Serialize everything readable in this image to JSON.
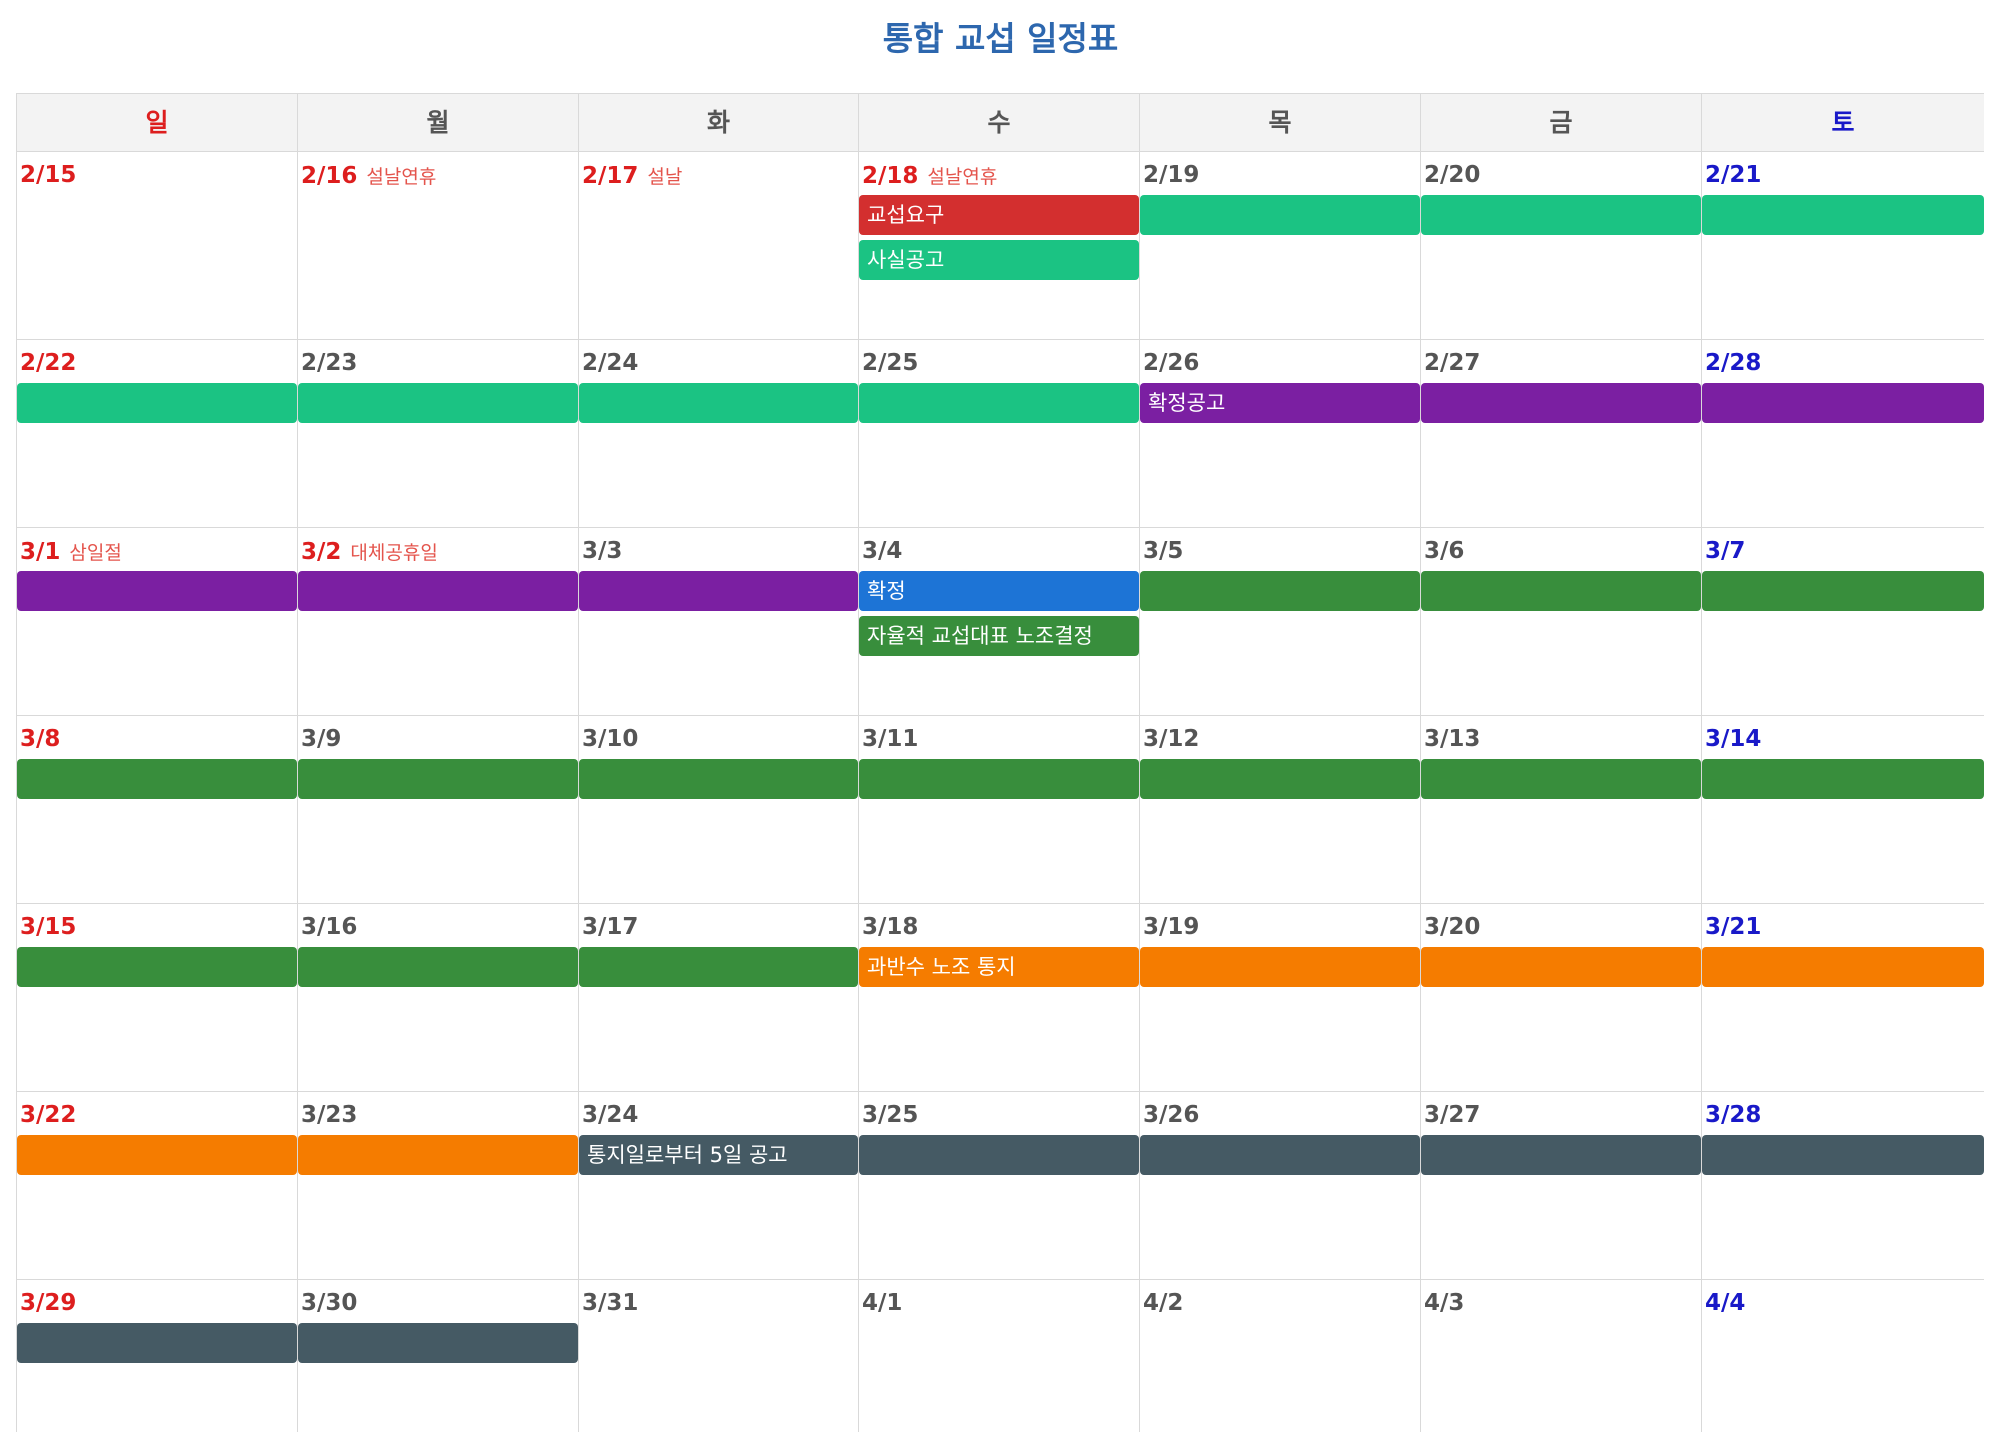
{
  "title": "통합 교섭 일정표",
  "colors": {
    "red": "#d32f2f",
    "teal": "#1bc383",
    "purple": "#7b1fa2",
    "blue": "#1d74d6",
    "green": "#388e3c",
    "orange": "#f57c00",
    "slate": "#455a64"
  },
  "weekdays": [
    {
      "label": "일",
      "kind": "sun"
    },
    {
      "label": "월",
      "kind": ""
    },
    {
      "label": "화",
      "kind": ""
    },
    {
      "label": "수",
      "kind": ""
    },
    {
      "label": "목",
      "kind": ""
    },
    {
      "label": "금",
      "kind": ""
    },
    {
      "label": "토",
      "kind": "sat"
    }
  ],
  "weeks": [
    [
      {
        "date": "2/15",
        "holiday": "",
        "style": "red",
        "bars": []
      },
      {
        "date": "2/16",
        "holiday": "설날연휴",
        "style": "red",
        "bars": []
      },
      {
        "date": "2/17",
        "holiday": "설날",
        "style": "red",
        "bars": []
      },
      {
        "date": "2/18",
        "holiday": "설날연휴",
        "style": "red",
        "bars": [
          {
            "label": "교섭요구",
            "color": "red"
          },
          {
            "label": "사실공고",
            "color": "teal"
          }
        ]
      },
      {
        "date": "2/19",
        "holiday": "",
        "style": "",
        "bars": [
          {
            "label": "",
            "color": "teal"
          }
        ]
      },
      {
        "date": "2/20",
        "holiday": "",
        "style": "",
        "bars": [
          {
            "label": "",
            "color": "teal"
          }
        ]
      },
      {
        "date": "2/21",
        "holiday": "",
        "style": "blue",
        "bars": [
          {
            "label": "",
            "color": "teal"
          }
        ]
      }
    ],
    [
      {
        "date": "2/22",
        "holiday": "",
        "style": "red",
        "bars": [
          {
            "label": "",
            "color": "teal"
          }
        ]
      },
      {
        "date": "2/23",
        "holiday": "",
        "style": "",
        "bars": [
          {
            "label": "",
            "color": "teal"
          }
        ]
      },
      {
        "date": "2/24",
        "holiday": "",
        "style": "",
        "bars": [
          {
            "label": "",
            "color": "teal"
          }
        ]
      },
      {
        "date": "2/25",
        "holiday": "",
        "style": "",
        "bars": [
          {
            "label": "",
            "color": "teal"
          }
        ]
      },
      {
        "date": "2/26",
        "holiday": "",
        "style": "",
        "bars": [
          {
            "label": "확정공고",
            "color": "purple"
          }
        ]
      },
      {
        "date": "2/27",
        "holiday": "",
        "style": "",
        "bars": [
          {
            "label": "",
            "color": "purple"
          }
        ]
      },
      {
        "date": "2/28",
        "holiday": "",
        "style": "blue",
        "bars": [
          {
            "label": "",
            "color": "purple"
          }
        ]
      }
    ],
    [
      {
        "date": "3/1",
        "holiday": "삼일절",
        "style": "red",
        "bars": [
          {
            "label": "",
            "color": "purple"
          }
        ]
      },
      {
        "date": "3/2",
        "holiday": "대체공휴일",
        "style": "red",
        "bars": [
          {
            "label": "",
            "color": "purple"
          }
        ]
      },
      {
        "date": "3/3",
        "holiday": "",
        "style": "",
        "bars": [
          {
            "label": "",
            "color": "purple"
          }
        ]
      },
      {
        "date": "3/4",
        "holiday": "",
        "style": "",
        "bars": [
          {
            "label": "확정",
            "color": "blue"
          },
          {
            "label": "자율적 교섭대표 노조결정",
            "color": "green"
          }
        ]
      },
      {
        "date": "3/5",
        "holiday": "",
        "style": "",
        "bars": [
          {
            "label": "",
            "color": "green"
          }
        ]
      },
      {
        "date": "3/6",
        "holiday": "",
        "style": "",
        "bars": [
          {
            "label": "",
            "color": "green"
          }
        ]
      },
      {
        "date": "3/7",
        "holiday": "",
        "style": "blue",
        "bars": [
          {
            "label": "",
            "color": "green"
          }
        ]
      }
    ],
    [
      {
        "date": "3/8",
        "holiday": "",
        "style": "red",
        "bars": [
          {
            "label": "",
            "color": "green"
          }
        ]
      },
      {
        "date": "3/9",
        "holiday": "",
        "style": "",
        "bars": [
          {
            "label": "",
            "color": "green"
          }
        ]
      },
      {
        "date": "3/10",
        "holiday": "",
        "style": "",
        "bars": [
          {
            "label": "",
            "color": "green"
          }
        ]
      },
      {
        "date": "3/11",
        "holiday": "",
        "style": "",
        "bars": [
          {
            "label": "",
            "color": "green"
          }
        ]
      },
      {
        "date": "3/12",
        "holiday": "",
        "style": "",
        "bars": [
          {
            "label": "",
            "color": "green"
          }
        ]
      },
      {
        "date": "3/13",
        "holiday": "",
        "style": "",
        "bars": [
          {
            "label": "",
            "color": "green"
          }
        ]
      },
      {
        "date": "3/14",
        "holiday": "",
        "style": "blue",
        "bars": [
          {
            "label": "",
            "color": "green"
          }
        ]
      }
    ],
    [
      {
        "date": "3/15",
        "holiday": "",
        "style": "red",
        "bars": [
          {
            "label": "",
            "color": "green"
          }
        ]
      },
      {
        "date": "3/16",
        "holiday": "",
        "style": "",
        "bars": [
          {
            "label": "",
            "color": "green"
          }
        ]
      },
      {
        "date": "3/17",
        "holiday": "",
        "style": "",
        "bars": [
          {
            "label": "",
            "color": "green"
          }
        ]
      },
      {
        "date": "3/18",
        "holiday": "",
        "style": "",
        "bars": [
          {
            "label": "과반수 노조 통지",
            "color": "orange"
          }
        ]
      },
      {
        "date": "3/19",
        "holiday": "",
        "style": "",
        "bars": [
          {
            "label": "",
            "color": "orange"
          }
        ]
      },
      {
        "date": "3/20",
        "holiday": "",
        "style": "",
        "bars": [
          {
            "label": "",
            "color": "orange"
          }
        ]
      },
      {
        "date": "3/21",
        "holiday": "",
        "style": "blue",
        "bars": [
          {
            "label": "",
            "color": "orange"
          }
        ]
      }
    ],
    [
      {
        "date": "3/22",
        "holiday": "",
        "style": "red",
        "bars": [
          {
            "label": "",
            "color": "orange"
          }
        ]
      },
      {
        "date": "3/23",
        "holiday": "",
        "style": "",
        "bars": [
          {
            "label": "",
            "color": "orange"
          }
        ]
      },
      {
        "date": "3/24",
        "holiday": "",
        "style": "",
        "bars": [
          {
            "label": "통지일로부터 5일 공고",
            "color": "slate"
          }
        ]
      },
      {
        "date": "3/25",
        "holiday": "",
        "style": "",
        "bars": [
          {
            "label": "",
            "color": "slate"
          }
        ]
      },
      {
        "date": "3/26",
        "holiday": "",
        "style": "",
        "bars": [
          {
            "label": "",
            "color": "slate"
          }
        ]
      },
      {
        "date": "3/27",
        "holiday": "",
        "style": "",
        "bars": [
          {
            "label": "",
            "color": "slate"
          }
        ]
      },
      {
        "date": "3/28",
        "holiday": "",
        "style": "blue",
        "bars": [
          {
            "label": "",
            "color": "slate"
          }
        ]
      }
    ],
    [
      {
        "date": "3/29",
        "holiday": "",
        "style": "red",
        "bars": [
          {
            "label": "",
            "color": "slate"
          }
        ]
      },
      {
        "date": "3/30",
        "holiday": "",
        "style": "",
        "bars": [
          {
            "label": "",
            "color": "slate"
          }
        ]
      },
      {
        "date": "3/31",
        "holiday": "",
        "style": "",
        "bars": []
      },
      {
        "date": "4/1",
        "holiday": "",
        "style": "",
        "bars": []
      },
      {
        "date": "4/2",
        "holiday": "",
        "style": "",
        "bars": []
      },
      {
        "date": "4/3",
        "holiday": "",
        "style": "",
        "bars": []
      },
      {
        "date": "4/4",
        "holiday": "",
        "style": "blue",
        "bars": []
      }
    ]
  ]
}
